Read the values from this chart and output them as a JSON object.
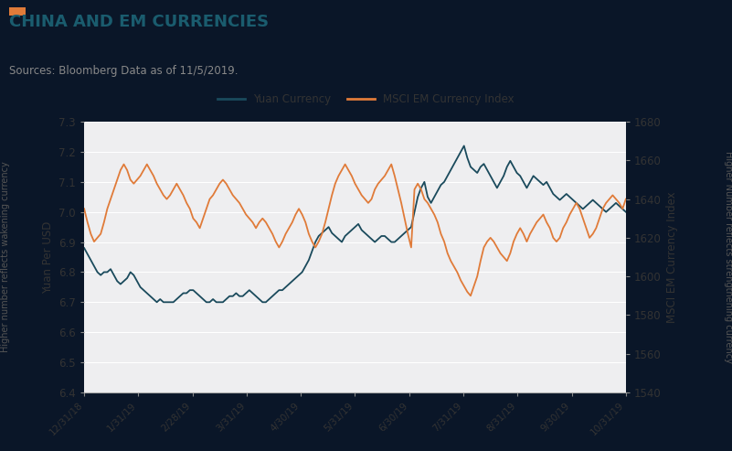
{
  "title": "CHINA AND EM CURRENCIES",
  "subtitle": "Sources: Bloomberg Data as of 11/5/2019.",
  "title_color": "#1a5c6e",
  "subtitle_color": "#444444",
  "accent_color": "#e07b39",
  "yuan_color": "#1a4a5c",
  "msci_color": "#e07b39",
  "background_color": "#0a1628",
  "plot_bg_color": "#eeeef0",
  "grid_color": "#ffffff",
  "ylabel_left": "Yuan Per USD",
  "ylabel_left2": "Higher number reflects wakening currency",
  "ylabel_right": "MSCI EM Currency Index",
  "ylabel_right2": "Higher Number reflects strengthening currency",
  "ylim_left": [
    6.4,
    7.3
  ],
  "ylim_right": [
    1540,
    1680
  ],
  "yticks_left": [
    6.4,
    6.5,
    6.6,
    6.7,
    6.8,
    6.9,
    7.0,
    7.1,
    7.2,
    7.3
  ],
  "yticks_right": [
    1540,
    1560,
    1580,
    1600,
    1620,
    1640,
    1660,
    1680
  ],
  "xtick_labels": [
    "12/31/18",
    "1/31/19",
    "2/28/19",
    "3/31/19",
    "4/30/19",
    "5/31/19",
    "6/30/19",
    "7/31/19",
    "8/31/19",
    "9/30/19",
    "10/31/19"
  ],
  "legend_yuan": "Yuan Currency",
  "legend_msci": "MSCI EM Currency Index",
  "yuan_data": [
    6.88,
    6.86,
    6.84,
    6.82,
    6.8,
    6.79,
    6.8,
    6.8,
    6.81,
    6.79,
    6.77,
    6.76,
    6.77,
    6.78,
    6.8,
    6.79,
    6.77,
    6.75,
    6.74,
    6.73,
    6.72,
    6.71,
    6.7,
    6.71,
    6.7,
    6.7,
    6.7,
    6.7,
    6.71,
    6.72,
    6.73,
    6.73,
    6.74,
    6.74,
    6.73,
    6.72,
    6.71,
    6.7,
    6.7,
    6.71,
    6.7,
    6.7,
    6.7,
    6.71,
    6.72,
    6.72,
    6.73,
    6.72,
    6.72,
    6.73,
    6.74,
    6.73,
    6.72,
    6.71,
    6.7,
    6.7,
    6.71,
    6.72,
    6.73,
    6.74,
    6.74,
    6.75,
    6.76,
    6.77,
    6.78,
    6.79,
    6.8,
    6.82,
    6.84,
    6.87,
    6.9,
    6.92,
    6.93,
    6.94,
    6.95,
    6.93,
    6.92,
    6.91,
    6.9,
    6.92,
    6.93,
    6.94,
    6.95,
    6.96,
    6.94,
    6.93,
    6.92,
    6.91,
    6.9,
    6.91,
    6.92,
    6.92,
    6.91,
    6.9,
    6.9,
    6.91,
    6.92,
    6.93,
    6.94,
    6.95,
    7.0,
    7.05,
    7.08,
    7.1,
    7.05,
    7.03,
    7.05,
    7.07,
    7.09,
    7.1,
    7.12,
    7.14,
    7.16,
    7.18,
    7.2,
    7.22,
    7.18,
    7.15,
    7.14,
    7.13,
    7.15,
    7.16,
    7.14,
    7.12,
    7.1,
    7.08,
    7.1,
    7.12,
    7.15,
    7.17,
    7.15,
    7.13,
    7.12,
    7.1,
    7.08,
    7.1,
    7.12,
    7.11,
    7.1,
    7.09,
    7.1,
    7.08,
    7.06,
    7.05,
    7.04,
    7.05,
    7.06,
    7.05,
    7.04,
    7.03,
    7.02,
    7.01,
    7.02,
    7.03,
    7.04,
    7.03,
    7.02,
    7.01,
    7.0,
    7.01,
    7.02,
    7.03,
    7.02,
    7.01,
    7.0
  ],
  "msci_data": [
    1635,
    1628,
    1622,
    1618,
    1620,
    1622,
    1628,
    1635,
    1640,
    1645,
    1650,
    1655,
    1658,
    1655,
    1650,
    1648,
    1650,
    1652,
    1655,
    1658,
    1655,
    1652,
    1648,
    1645,
    1642,
    1640,
    1642,
    1645,
    1648,
    1645,
    1642,
    1638,
    1635,
    1630,
    1628,
    1625,
    1630,
    1635,
    1640,
    1642,
    1645,
    1648,
    1650,
    1648,
    1645,
    1642,
    1640,
    1638,
    1635,
    1632,
    1630,
    1628,
    1625,
    1628,
    1630,
    1628,
    1625,
    1622,
    1618,
    1615,
    1618,
    1622,
    1625,
    1628,
    1632,
    1635,
    1632,
    1628,
    1622,
    1618,
    1615,
    1618,
    1622,
    1628,
    1635,
    1642,
    1648,
    1652,
    1655,
    1658,
    1655,
    1652,
    1648,
    1645,
    1642,
    1640,
    1638,
    1640,
    1645,
    1648,
    1650,
    1652,
    1655,
    1658,
    1652,
    1645,
    1638,
    1630,
    1622,
    1615,
    1645,
    1648,
    1645,
    1640,
    1638,
    1635,
    1632,
    1628,
    1622,
    1618,
    1612,
    1608,
    1605,
    1602,
    1598,
    1595,
    1592,
    1590,
    1595,
    1600,
    1608,
    1615,
    1618,
    1620,
    1618,
    1615,
    1612,
    1610,
    1608,
    1612,
    1618,
    1622,
    1625,
    1622,
    1618,
    1622,
    1625,
    1628,
    1630,
    1632,
    1628,
    1625,
    1620,
    1618,
    1620,
    1625,
    1628,
    1632,
    1635,
    1638,
    1635,
    1630,
    1625,
    1620,
    1622,
    1625,
    1630,
    1635,
    1638,
    1640,
    1642,
    1640,
    1638,
    1635,
    1640
  ]
}
